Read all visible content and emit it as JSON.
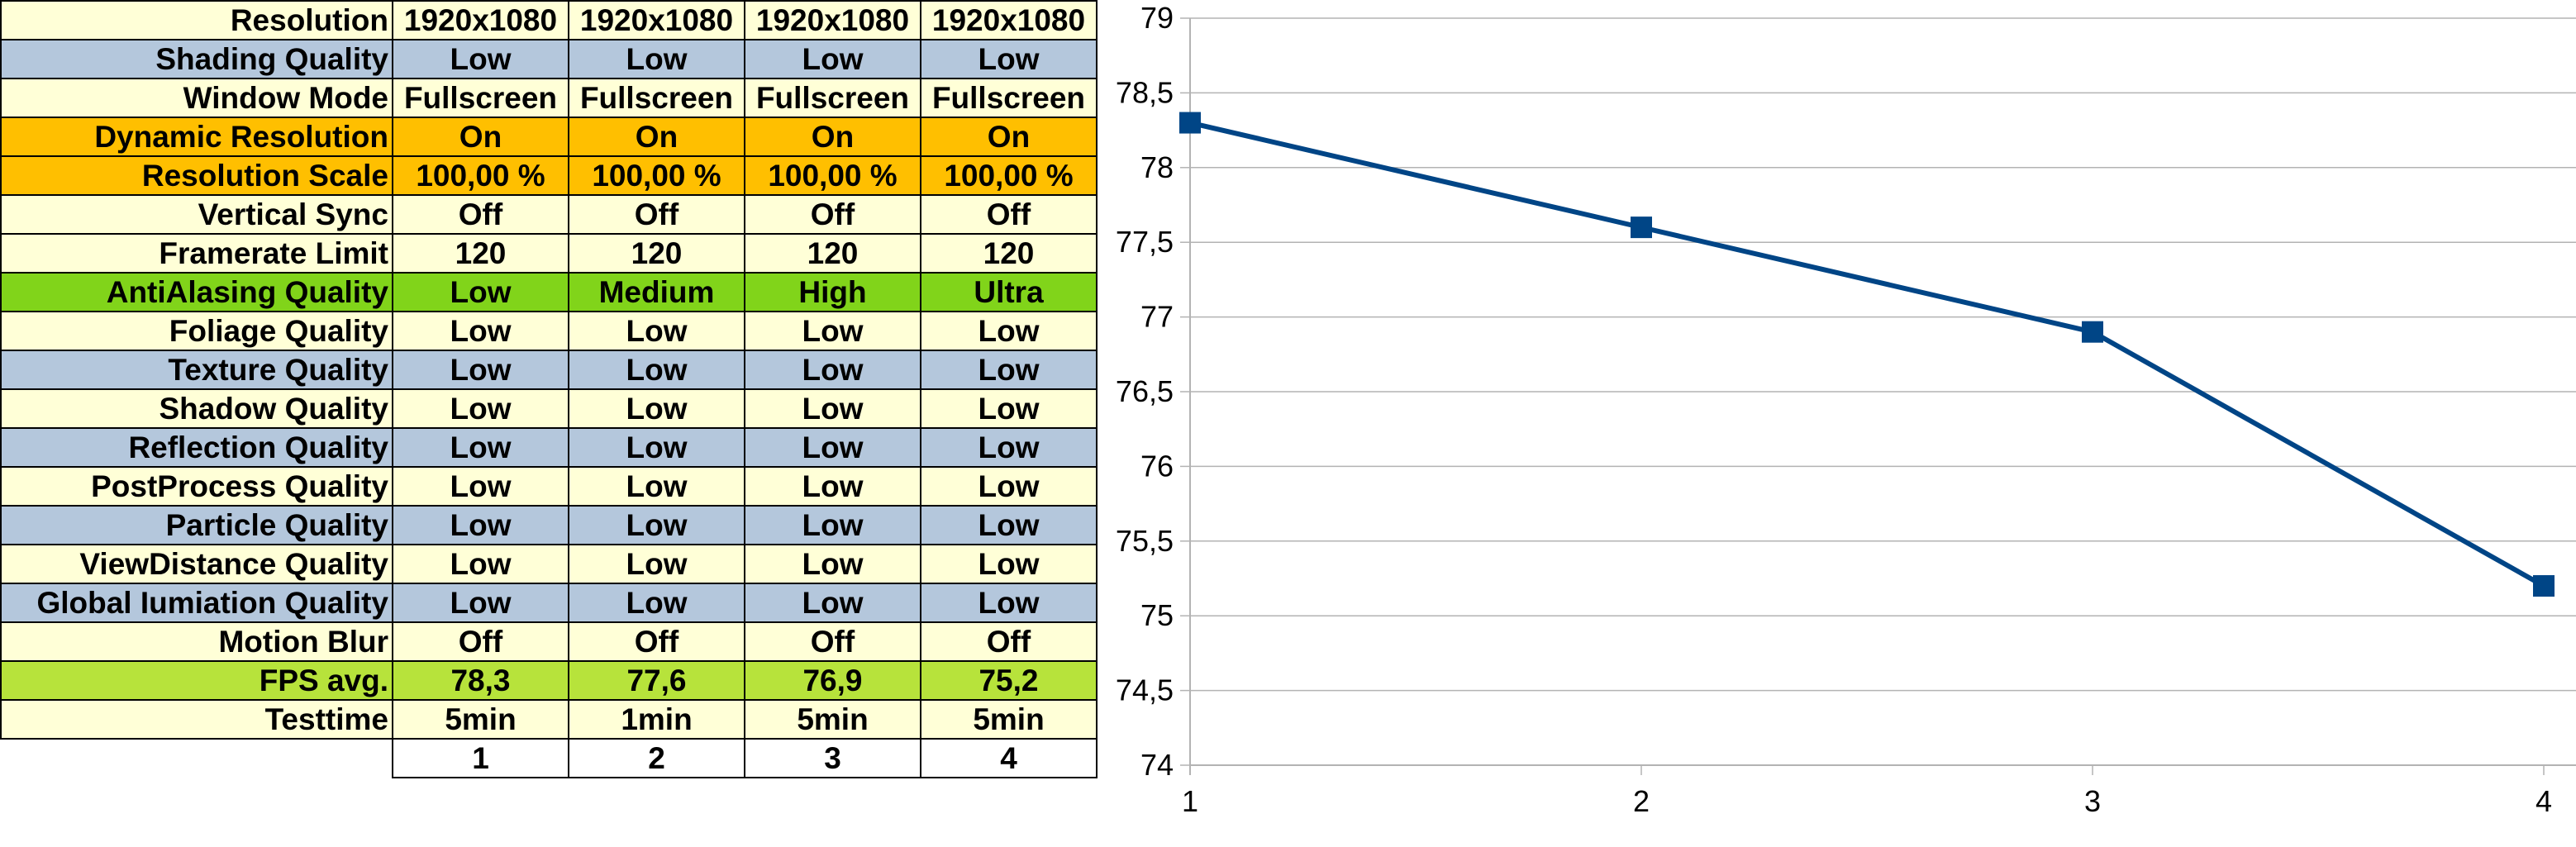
{
  "table": {
    "rows": [
      {
        "label": "Resolution",
        "values": [
          "1920x1080",
          "1920x1080",
          "1920x1080",
          "1920x1080"
        ],
        "color": "#FFFFD7"
      },
      {
        "label": "Shading Quality",
        "values": [
          "Low",
          "Low",
          "Low",
          "Low"
        ],
        "color": "#B4C7DC"
      },
      {
        "label": "Window Mode",
        "values": [
          "Fullscreen",
          "Fullscreen",
          "Fullscreen",
          "Fullscreen"
        ],
        "color": "#FFFFD7"
      },
      {
        "label": "Dynamic Resolution",
        "values": [
          "On",
          "On",
          "On",
          "On"
        ],
        "color": "#FFBF00"
      },
      {
        "label": "Resolution Scale",
        "values": [
          "100,00 %",
          "100,00 %",
          "100,00 %",
          "100,00 %"
        ],
        "color": "#FFBF00"
      },
      {
        "label": "Vertical Sync",
        "values": [
          "Off",
          "Off",
          "Off",
          "Off"
        ],
        "color": "#FFFFD7"
      },
      {
        "label": "Framerate Limit",
        "values": [
          "120",
          "120",
          "120",
          "120"
        ],
        "color": "#FFFFD7"
      },
      {
        "label": "AntiAlasing Quality",
        "values": [
          "Low",
          "Medium",
          "High",
          "Ultra"
        ],
        "color": "#81D41A"
      },
      {
        "label": "Foliage Quality",
        "values": [
          "Low",
          "Low",
          "Low",
          "Low"
        ],
        "color": "#FFFFD7"
      },
      {
        "label": "Texture Quality",
        "values": [
          "Low",
          "Low",
          "Low",
          "Low"
        ],
        "color": "#B4C7DC"
      },
      {
        "label": "Shadow Quality",
        "values": [
          "Low",
          "Low",
          "Low",
          "Low"
        ],
        "color": "#FFFFD7"
      },
      {
        "label": "Reflection Quality",
        "values": [
          "Low",
          "Low",
          "Low",
          "Low"
        ],
        "color": "#B4C7DC"
      },
      {
        "label": "PostProcess Quality",
        "values": [
          "Low",
          "Low",
          "Low",
          "Low"
        ],
        "color": "#FFFFD7"
      },
      {
        "label": "Particle Quality",
        "values": [
          "Low",
          "Low",
          "Low",
          "Low"
        ],
        "color": "#B4C7DC"
      },
      {
        "label": "ViewDistance Quality",
        "values": [
          "Low",
          "Low",
          "Low",
          "Low"
        ],
        "color": "#FFFFD7"
      },
      {
        "label": "Global Iumiation Quality",
        "values": [
          "Low",
          "Low",
          "Low",
          "Low"
        ],
        "color": "#B4C7DC"
      },
      {
        "label": "Motion Blur",
        "values": [
          "Off",
          "Off",
          "Off",
          "Off"
        ],
        "color": "#FFFFD7"
      },
      {
        "label": "FPS avg.",
        "values": [
          "78,3",
          "77,6",
          "76,9",
          "75,2"
        ],
        "color": "#B7E33B"
      },
      {
        "label": "Testtime",
        "values": [
          "5min",
          "1min",
          "5min",
          "5min"
        ],
        "color": "#FFFFD7"
      }
    ],
    "index": [
      "1",
      "2",
      "3",
      "4"
    ]
  },
  "chart_data": {
    "type": "line",
    "x": [
      1,
      2,
      3,
      4
    ],
    "series": [
      {
        "values": [
          78.3,
          77.6,
          76.9,
          75.2
        ],
        "color": "#004586",
        "marker": "square"
      }
    ],
    "ylim": [
      74,
      79
    ],
    "yticks": [
      "74",
      "74,5",
      "75",
      "75,5",
      "76",
      "76,5",
      "77",
      "77,5",
      "78",
      "78,5",
      "79"
    ],
    "xticks": [
      "1",
      "2",
      "3",
      "4"
    ],
    "grid": true,
    "title": "",
    "xlabel": "",
    "ylabel": ""
  }
}
